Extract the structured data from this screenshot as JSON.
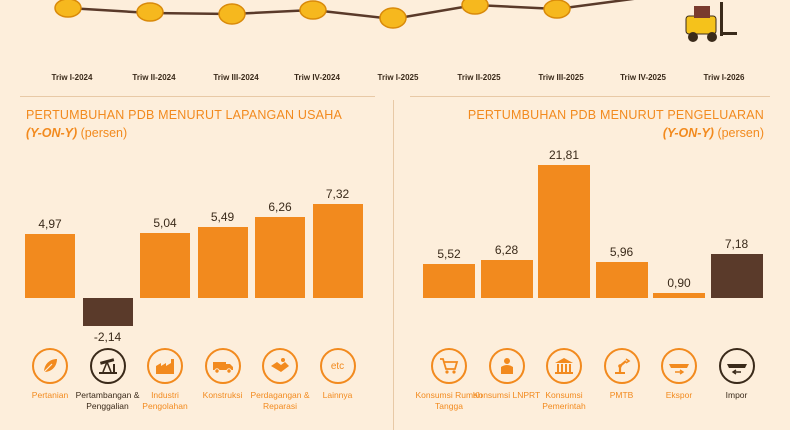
{
  "timeline": {
    "quarters": [
      "Triw I-2024",
      "Triw II-2024",
      "Triw III-2024",
      "Triw IV-2024",
      "Triw I-2025",
      "Triw II-2025",
      "Triw III-2025",
      "Triw IV-2025",
      "Triw I-2026"
    ]
  },
  "left": {
    "title": "PERTUMBUHAN PDB MENURUT LAPANGAN USAHA",
    "sub_italic": "(Y-ON-Y)",
    "sub_rest": " (persen)"
  },
  "right": {
    "title": "PERTUMBUHAN PDB MENURUT PENGELUARAN",
    "sub_italic": "(Y-ON-Y)",
    "sub_rest": " (persen)"
  },
  "colors": {
    "orange": "#f28a1e",
    "dark": "#5a3a2a",
    "text": "#3a2a1a",
    "bg": "#fdeedb"
  },
  "chart_data": [
    {
      "type": "bar",
      "title": "PERTUMBUHAN PDB MENURUT LAPANGAN USAHA (Y-ON-Y) (persen)",
      "categories": [
        "Pertanian",
        "Pertambangan & Penggalian",
        "Industri Pengolahan",
        "Konstruksi",
        "Perdagangan & Reparasi",
        "Lainnya"
      ],
      "values": [
        4.97,
        -2.14,
        5.04,
        5.49,
        6.26,
        7.32
      ],
      "value_labels": [
        "4,97",
        "-2,14",
        "5,04",
        "5,49",
        "6,26",
        "7,32"
      ],
      "icons": [
        "leaf-icon",
        "oil-pump-icon",
        "factory-icon",
        "truck-icon",
        "handshake-icon",
        "etc-icon"
      ],
      "icon_text": [
        "",
        "",
        "",
        "",
        "",
        "etc"
      ]
    },
    {
      "type": "bar",
      "title": "PERTUMBUHAN PDB MENURUT PENGELUARAN (Y-ON-Y) (persen)",
      "categories": [
        "Konsumsi Rumah Tangga",
        "Konsumsi LNPRT",
        "Konsumsi Pemerintah",
        "PMTB",
        "Ekspor",
        "Impor"
      ],
      "values": [
        5.52,
        6.28,
        21.81,
        5.96,
        0.9,
        7.18
      ],
      "value_labels": [
        "5,52",
        "6,28",
        "21,81",
        "5,96",
        "0,90",
        "7,18"
      ],
      "icons": [
        "shopping-cart-icon",
        "person-icon",
        "government-building-icon",
        "robot-arm-icon",
        "export-ship-icon",
        "import-ship-icon"
      ]
    }
  ]
}
